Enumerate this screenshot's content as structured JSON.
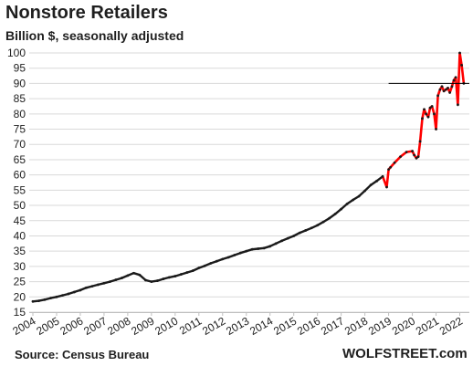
{
  "chart_data": {
    "type": "line",
    "title": "Nonstore Retailers",
    "subtitle": "Billion $, seasonally adjusted",
    "source": "Source: Census Bureau",
    "brand": "WOLFSTREET.com",
    "ylim": [
      15,
      100
    ],
    "yticks": [
      15,
      20,
      25,
      30,
      35,
      40,
      45,
      50,
      55,
      60,
      65,
      70,
      75,
      80,
      85,
      90,
      95,
      100
    ],
    "xlim": [
      2004,
      2022.25
    ],
    "xticks": [
      "2004",
      "2005",
      "2006",
      "2007",
      "2008",
      "2009",
      "2010",
      "2011",
      "2012",
      "2013",
      "2014",
      "2015",
      "2016",
      "2017",
      "2018",
      "2019",
      "2020",
      "2021",
      "2022"
    ],
    "grid": "horizontal",
    "reference_line": 90,
    "colors": {
      "early_line": "#1a1a1a",
      "recent_line": "#ff0000",
      "markers": "#1a1a1a",
      "grid": "#d9d9d9"
    },
    "series": [
      {
        "x": [
          2004.0,
          2004.25,
          2004.5,
          2004.75,
          2005.0,
          2005.25,
          2005.5,
          2005.75,
          2006.0,
          2006.25,
          2006.5,
          2006.75,
          2007.0,
          2007.25,
          2007.5,
          2007.75,
          2008.0,
          2008.25,
          2008.5,
          2008.75,
          2009.0,
          2009.25,
          2009.5,
          2009.75,
          2010.0,
          2010.25,
          2010.5,
          2010.75,
          2011.0,
          2011.25,
          2011.5,
          2011.75,
          2012.0,
          2012.25,
          2012.5,
          2012.75,
          2013.0,
          2013.25,
          2013.5,
          2013.75,
          2014.0,
          2014.25,
          2014.5,
          2014.75,
          2015.0,
          2015.25,
          2015.5,
          2015.75,
          2016.0,
          2016.25,
          2016.5,
          2016.75,
          2017.0,
          2017.25,
          2017.5,
          2017.75,
          2018.0,
          2018.25,
          2018.5,
          2018.75,
          2018.92,
          2019.0,
          2019.08,
          2019.25,
          2019.5,
          2019.75,
          2020.0,
          2020.08,
          2020.17,
          2020.25,
          2020.33,
          2020.42,
          2020.5,
          2020.58,
          2020.67,
          2020.75,
          2020.83,
          2020.92,
          2021.0,
          2021.08,
          2021.17,
          2021.25,
          2021.33,
          2021.42,
          2021.5,
          2021.58,
          2021.67,
          2021.75,
          2021.83,
          2021.92,
          2022.0,
          2022.08,
          2022.17
        ],
        "values": [
          18.5,
          18.7,
          19.1,
          19.6,
          20.0,
          20.5,
          21.0,
          21.6,
          22.2,
          23.0,
          23.5,
          24.0,
          24.5,
          25.0,
          25.6,
          26.2,
          27.0,
          27.8,
          27.2,
          25.5,
          25.0,
          25.3,
          25.9,
          26.4,
          26.8,
          27.4,
          28.0,
          28.6,
          29.5,
          30.2,
          31.0,
          31.7,
          32.4,
          33.0,
          33.7,
          34.4,
          35.0,
          35.6,
          35.8,
          36.0,
          36.6,
          37.5,
          38.4,
          39.2,
          40.0,
          41.0,
          41.8,
          42.6,
          43.5,
          44.6,
          45.8,
          47.2,
          48.8,
          50.5,
          51.8,
          53.0,
          54.8,
          56.7,
          58.0,
          59.5,
          56.0,
          61.8,
          62.5,
          64.0,
          66.0,
          67.5,
          67.8,
          66.5,
          65.5,
          66.0,
          71.0,
          78.5,
          81.5,
          80.0,
          79.0,
          82.0,
          82.5,
          80.0,
          75.0,
          86.0,
          88.0,
          89.0,
          87.5,
          88.0,
          88.5,
          87.0,
          89.0,
          91.0,
          92.0,
          83.0,
          100.0,
          96.0,
          90.0
        ]
      }
    ]
  }
}
